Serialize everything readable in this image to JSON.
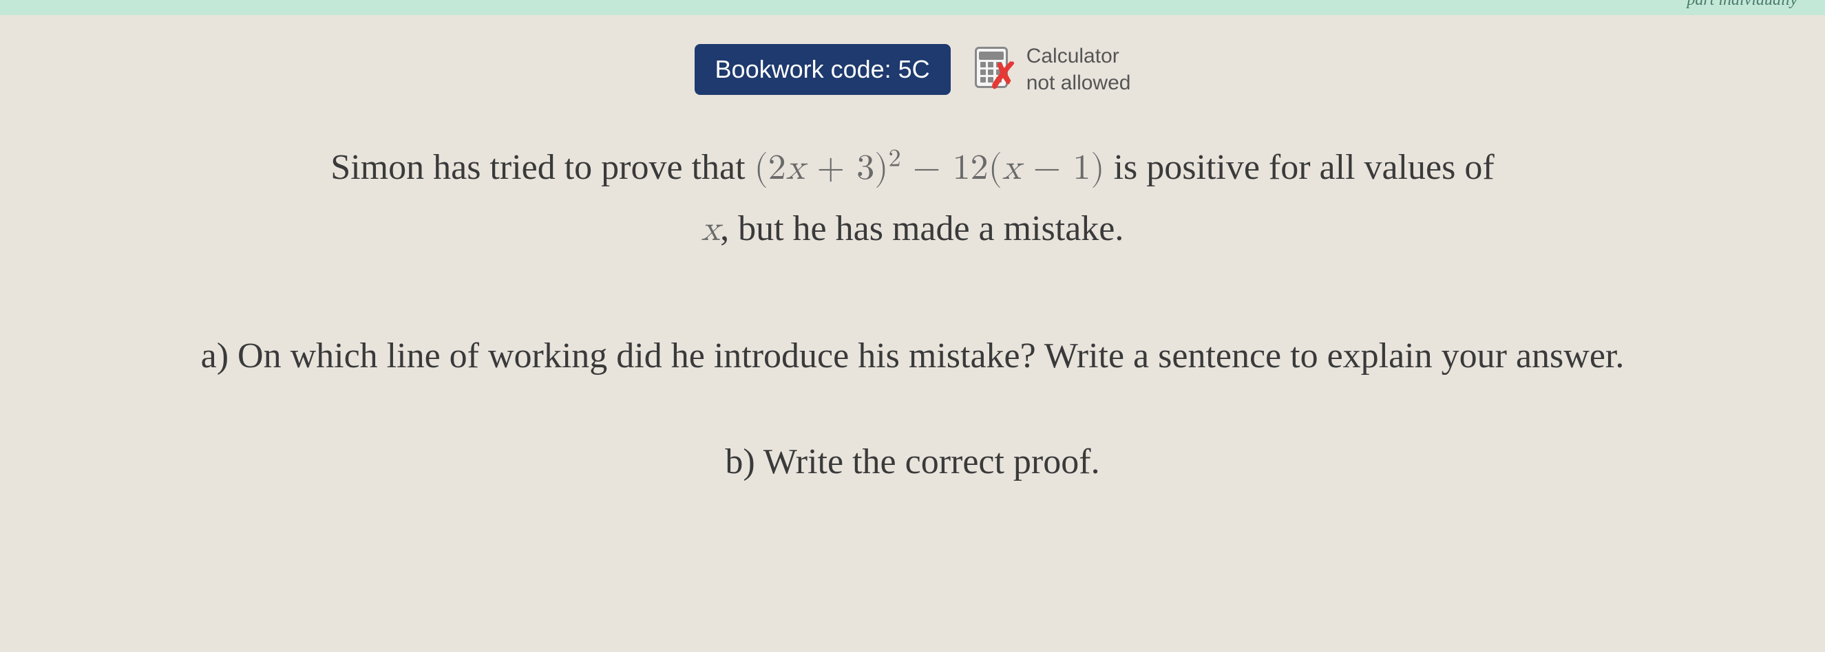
{
  "top_banner_text": "part individually",
  "header": {
    "bookwork_label": "Bookwork code: 5C",
    "calculator_line1": "Calculator",
    "calculator_line2": "not allowed"
  },
  "question": {
    "intro_before_math": "Simon has tried to prove that ",
    "expression_text": "(2x + 3)² − 12(x − 1)",
    "intro_after_math": " is positive for all values of",
    "intro_line2_prefix": "x",
    "intro_line2_rest": ", but he has made a mistake.",
    "part_a": "a) On which line of working did he introduce his mistake? Write a sentence to explain your answer.",
    "part_b": "b) Write the correct proof."
  },
  "styling": {
    "background_color": "#e8e4dc",
    "banner_color": "#c4e8d8",
    "badge_bg": "#1e3a6e",
    "badge_text_color": "#ffffff",
    "body_text_color": "#3a3a3a",
    "math_text_color": "#6a6a6a",
    "calc_text_color": "#555555",
    "red_x_color": "#e53935",
    "body_font_size": 52,
    "header_font_size": 36,
    "calc_font_size": 30
  }
}
